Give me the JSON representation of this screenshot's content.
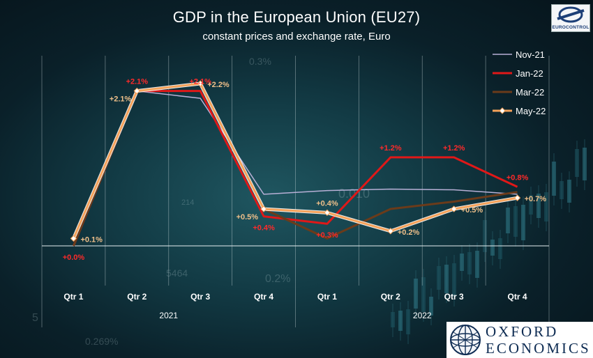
{
  "title": "GDP in the European Union (EU27)",
  "subtitle": "constant prices and exchange rate, Euro",
  "logos": {
    "eurocontrol": "EUROCONTROL",
    "oxford_line1": "OXFORD",
    "oxford_line2": "ECONOMICS"
  },
  "background_numbers": [
    "0.3%",
    "214",
    "0.010",
    "5464",
    "0.2%",
    "5",
    "0.269%"
  ],
  "chart_data": {
    "type": "line",
    "title": "GDP in the European Union (EU27)",
    "subtitle": "constant prices and exchange rate, Euro",
    "categories": [
      "Qtr 1",
      "Qtr 2",
      "Qtr 3",
      "Qtr 4",
      "Qtr 1",
      "Qtr 2",
      "Qtr 3",
      "Qtr 4"
    ],
    "groups": [
      {
        "label": "2021",
        "span": [
          0,
          3
        ]
      },
      {
        "label": "2022",
        "span": [
          4,
          7
        ]
      }
    ],
    "ylim": [
      -0.3,
      2.3
    ],
    "grid": "vertical",
    "legend": "top-right",
    "series": [
      {
        "name": "Nov-21",
        "color": "#b8b0d6",
        "width": 1.5,
        "marker": false,
        "values": [
          0.0,
          2.1,
          2.0,
          0.7,
          0.75,
          0.77,
          0.76,
          0.7
        ],
        "labels": []
      },
      {
        "name": "Jan-22",
        "color": "#e01818",
        "width": 3,
        "marker": false,
        "values": [
          0.0,
          2.1,
          2.1,
          0.4,
          0.3,
          1.2,
          1.2,
          0.8
        ],
        "labels": [
          {
            "i": 0,
            "text": "+0.0%",
            "pos": "below"
          },
          {
            "i": 1,
            "text": "+2.1%",
            "pos": "above"
          },
          {
            "i": 2,
            "text": "+2.1%",
            "pos": "above"
          },
          {
            "i": 3,
            "text": "+0.4%",
            "pos": "below"
          },
          {
            "i": 4,
            "text": "+0.3%",
            "pos": "below"
          },
          {
            "i": 5,
            "text": "+1.2%",
            "pos": "above"
          },
          {
            "i": 6,
            "text": "+1.2%",
            "pos": "above"
          },
          {
            "i": 7,
            "text": "+0.8%",
            "pos": "above"
          }
        ]
      },
      {
        "name": "Mar-22",
        "color": "#6b3b1a",
        "width": 3,
        "marker": false,
        "values": [
          0.0,
          2.1,
          2.2,
          0.5,
          0.1,
          0.5,
          0.6,
          0.73
        ],
        "labels": []
      },
      {
        "name": "May-22",
        "color": "#f5a25a",
        "width": 3,
        "marker": true,
        "values": [
          0.1,
          2.1,
          2.2,
          0.5,
          0.45,
          0.2,
          0.5,
          0.65
        ],
        "labels": [
          {
            "i": 0,
            "text": "+0.1%",
            "pos": "right"
          },
          {
            "i": 1,
            "text": "+2.1%",
            "pos": "left"
          },
          {
            "i": 2,
            "text": "+2.2%",
            "pos": "right"
          },
          {
            "i": 3,
            "text": "+0.5%",
            "pos": "left"
          },
          {
            "i": 4,
            "text": "+0.4%",
            "pos": "above"
          },
          {
            "i": 5,
            "text": "+0.2%",
            "pos": "right"
          },
          {
            "i": 6,
            "text": "+0.5%",
            "pos": "right"
          },
          {
            "i": 7,
            "text": "+0.7%",
            "pos": "right"
          }
        ]
      }
    ]
  }
}
